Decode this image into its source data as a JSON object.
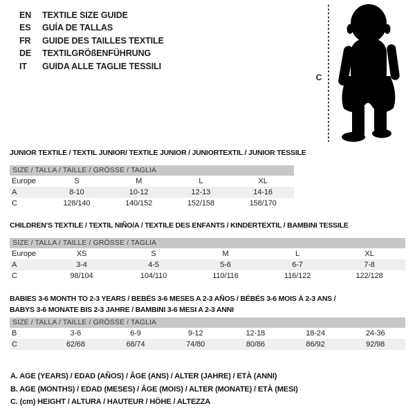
{
  "header": {
    "languages": [
      {
        "code": "EN",
        "label": "TEXTILE SIZE GUIDE"
      },
      {
        "code": "ES",
        "label": "GUÍA DE TALLAS"
      },
      {
        "code": "FR",
        "label": "GUIDE DES TAILLES TEXTILE"
      },
      {
        "code": "DE",
        "label": "TEXTILGRÖßENFÜHRUNG"
      },
      {
        "code": "IT",
        "label": "GUIDA ALLE TAGLIE TESSILI"
      }
    ]
  },
  "figure": {
    "icon": "baby-silhouette",
    "label": "C"
  },
  "tables": [
    {
      "title": "JUNIOR TEXTILE / TEXTIL JUNIOR/ TEXTILE JUNIOR / JUNIORTEXTIL / JUNIOR TESSILE",
      "size_header": "SIZE / TALLA / TAILLE / GRÖSSE / TAGLIA",
      "rows": [
        {
          "label": "Europe",
          "cells": [
            "S",
            "M",
            "L",
            "XL"
          ],
          "shade": false
        },
        {
          "label": "A",
          "cells": [
            "8-10",
            "10-12",
            "12-13",
            "14-16"
          ],
          "shade": true
        },
        {
          "label": "C",
          "cells": [
            "128/140",
            "140/152",
            "152/158",
            "158/170"
          ],
          "shade": false
        }
      ]
    },
    {
      "title": "CHILDREN'S TEXTILE / TEXTIL NIÑO/A / TEXTILE DES ENFANTS / KINDERTEXTIL / BAMBINI TESSILE",
      "size_header": "SIZE / TALLA / TAILLE / GRÖSSE / TAGLIA",
      "rows": [
        {
          "label": "Europe",
          "cells": [
            "XS",
            "S",
            "M",
            "L",
            "XL"
          ],
          "shade": false
        },
        {
          "label": "A",
          "cells": [
            "3-4",
            "4-5",
            "5-6",
            "6-7",
            "7-8"
          ],
          "shade": true
        },
        {
          "label": "C",
          "cells": [
            "98/104",
            "104/110",
            "110/116",
            "116/122",
            "122/128"
          ],
          "shade": false
        }
      ]
    },
    {
      "title": "BABIES 3-6 MONTH TO 2-3 YEARS / BEBÉS 3-6 MESES A 2-3 AÑOS / BÉBÉS 3-6 MOIS À 2-3 ANS /",
      "title2": "BABYS 3-6 MONATE BIS 2-3 JAHRE / BAMBINI 3-6 MESI A 2-3 ANNI",
      "size_header": "SIZE / TALLA / TAILLE / GRÖSSE / TAGLIA",
      "rows": [
        {
          "label": "B",
          "cells": [
            "3-6",
            "6-9",
            "9-12",
            "12-18",
            "18-24",
            "24-36"
          ],
          "shade": false
        },
        {
          "label": "C",
          "cells": [
            "62/68",
            "68/74",
            "74/80",
            "80/86",
            "86/92",
            "92/98"
          ],
          "shade": true
        }
      ]
    }
  ],
  "footnotes": [
    {
      "text": "A. AGE (YEARS) / EDAD (AÑOS) / ÂGE (ANS) / ALTER (JAHRE) / ETÀ (ANNI)"
    },
    {
      "text": "B. AGE (MONTHS) / EDAD (MESES) / ÂGE (MOIS) / ALTER (MONATE) / ETÀ (MESI)"
    },
    {
      "text": "C. (cm) HEIGHT / ALTURA / HAUTEUR / HÖHE / ALTEZZA"
    }
  ],
  "colors": {
    "bar_bg": "#c8c8c8",
    "stripe": "#efefef",
    "text": "#1e1e1e",
    "bar_text": "#3d3d3d",
    "silhouette": "#000000"
  }
}
